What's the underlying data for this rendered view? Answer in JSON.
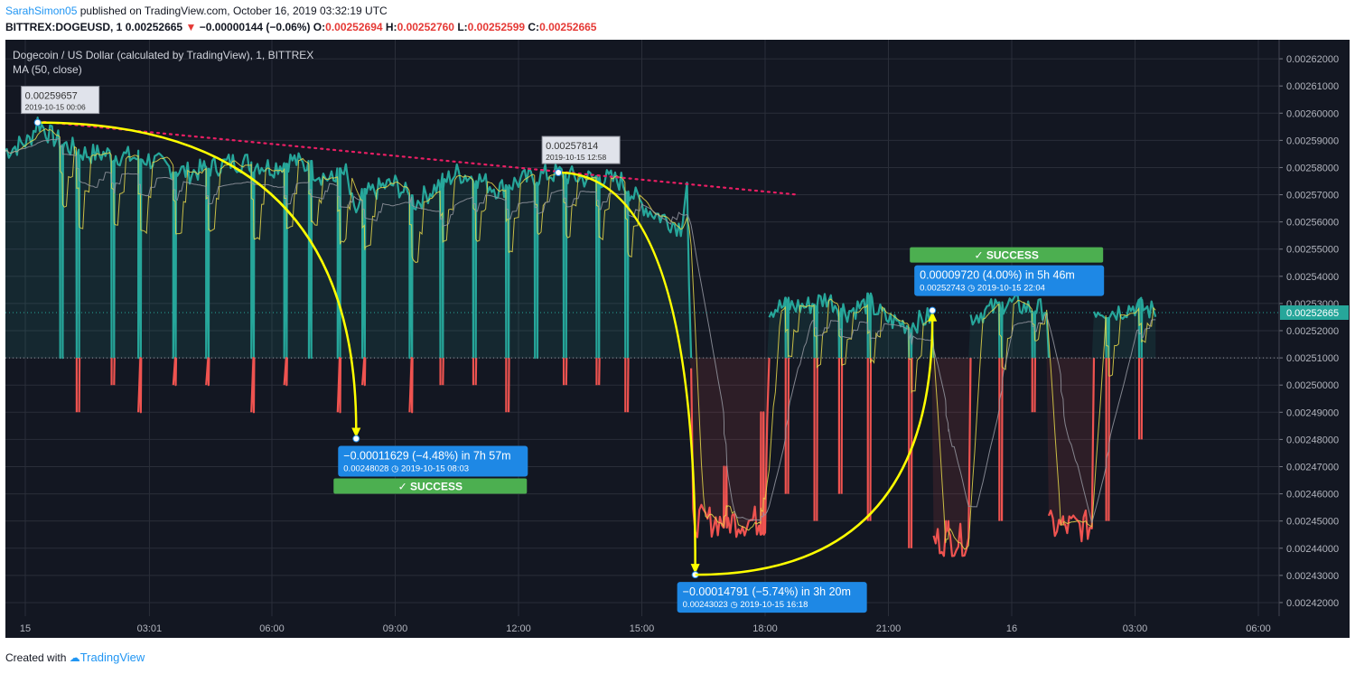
{
  "header": {
    "author": "SarahSimon05",
    "published_text": " published on TradingView.com, October 16, 2019 03:32:19 UTC",
    "symbol": "BITTREX:DOGEUSD, 1",
    "last_price": "0.00252665",
    "change_arrow": "▼",
    "change": "−0.00000144 (−0.06%)",
    "o_label": "O:",
    "o_value": "0.00252694",
    "h_label": "H:",
    "h_value": "0.00252760",
    "l_label": "L:",
    "l_value": "0.00252599",
    "c_label": "C:",
    "c_value": "0.00252665"
  },
  "footer": {
    "created_with": "Created with",
    "brand": "TradingView"
  },
  "colors": {
    "background": "#131722",
    "grid": "#2a2e39",
    "up": "#26a69a",
    "down": "#ef5350",
    "ma_fast": "#e6d84a",
    "ma_slow": "#9598a1",
    "annotation": "#ffff00",
    "trendline": "#e91e63",
    "label_blue": "#1e88e5",
    "success_green": "#4caf50"
  },
  "chart_data": {
    "type": "area",
    "title": "Dogecoin / US Dollar (calculated by TradingView), 1, BITTREX",
    "indicator": "MA (50, close)",
    "x_axis": {
      "unit": "time (UTC), 1-minute bars, 2019-10-15 00:00 to 2019-10-16 03:32",
      "ticks": [
        {
          "label": "15",
          "t": 0
        },
        {
          "label": "03:01",
          "t": 3.02
        },
        {
          "label": "06:00",
          "t": 6
        },
        {
          "label": "09:00",
          "t": 9
        },
        {
          "label": "12:00",
          "t": 12
        },
        {
          "label": "15:00",
          "t": 15
        },
        {
          "label": "18:00",
          "t": 18
        },
        {
          "label": "21:00",
          "t": 21
        },
        {
          "label": "16",
          "t": 24
        },
        {
          "label": "03:00",
          "t": 27
        },
        {
          "label": "06:00",
          "t": 30
        }
      ]
    },
    "y_axis": {
      "range": [
        0.002415,
        0.002627
      ],
      "ticks": [
        "0.00262000",
        "0.00261000",
        "0.00260000",
        "0.00259000",
        "0.00258000",
        "0.00257000",
        "0.00256000",
        "0.00255000",
        "0.00254000",
        "0.00253000",
        "0.00252000",
        "0.00251000",
        "0.00250000",
        "0.00249000",
        "0.00248000",
        "0.00247000",
        "0.00246000",
        "0.00245000",
        "0.00244000",
        "0.00243000",
        "0.00242000"
      ],
      "last_price_label": "0.00252665",
      "baseline": 0.00251
    },
    "series": [
      {
        "name": "DOGEUSD",
        "points": [
          [
            -0.5,
            0.002586
          ],
          [
            -0.2,
            0.002588
          ],
          [
            0.1,
            0.00259
          ],
          [
            0.3,
            0.002597
          ],
          [
            0.6,
            0.002592
          ],
          [
            1.0,
            0.002588
          ],
          [
            1.5,
            0.002585
          ],
          [
            2.0,
            0.002585
          ],
          [
            2.5,
            0.002584
          ],
          [
            3.0,
            0.002583
          ],
          [
            3.5,
            0.00258
          ],
          [
            4.0,
            0.002578
          ],
          [
            4.5,
            0.00258
          ],
          [
            5.0,
            0.002582
          ],
          [
            5.5,
            0.002582
          ],
          [
            6.0,
            0.00258
          ],
          [
            6.5,
            0.002583
          ],
          [
            7.0,
            0.002579
          ],
          [
            7.5,
            0.002575
          ],
          [
            7.8,
            0.002578
          ],
          [
            8.0,
            0.002563
          ],
          [
            8.3,
            0.00257
          ],
          [
            8.7,
            0.002573
          ],
          [
            9.0,
            0.002574
          ],
          [
            9.5,
            0.002567
          ],
          [
            10.0,
            0.002573
          ],
          [
            10.5,
            0.002578
          ],
          [
            11.0,
            0.002576
          ],
          [
            11.5,
            0.002572
          ],
          [
            12.0,
            0.002575
          ],
          [
            12.5,
            0.002577
          ],
          [
            12.97,
            0.002578
          ],
          [
            13.5,
            0.002576
          ],
          [
            14.0,
            0.002576
          ],
          [
            14.5,
            0.002575
          ],
          [
            14.9,
            0.002568
          ],
          [
            15.2,
            0.002564
          ],
          [
            15.6,
            0.002561
          ],
          [
            15.95,
            0.002558
          ],
          [
            16.1,
            0.002575
          ],
          [
            16.15,
            0.002535
          ],
          [
            16.25,
            0.00247
          ],
          [
            16.4,
            0.00246
          ],
          [
            16.7,
            0.00245
          ],
          [
            17.2,
            0.00245
          ],
          [
            17.6,
            0.002448
          ],
          [
            18.0,
            0.002449
          ],
          [
            18.1,
            0.002528
          ],
          [
            18.5,
            0.002529
          ],
          [
            19.0,
            0.002529
          ],
          [
            19.5,
            0.002532
          ],
          [
            20.0,
            0.002527
          ],
          [
            20.5,
            0.00253
          ],
          [
            21.0,
            0.002524
          ],
          [
            21.5,
            0.002522
          ],
          [
            22.0,
            0.002525
          ],
          [
            22.2,
            0.002526
          ],
          [
            22.4,
            0.002525
          ],
          [
            22.8,
            0.002526
          ],
          [
            23.0,
            0.002525
          ],
          [
            23.5,
            0.002528
          ],
          [
            24.0,
            0.00253
          ],
          [
            24.5,
            0.002528
          ],
          [
            25.0,
            0.002528
          ],
          [
            25.5,
            0.002527
          ],
          [
            26.0,
            0.002528
          ],
          [
            26.5,
            0.002527
          ],
          [
            27.0,
            0.002529
          ],
          [
            27.53,
            0.002527
          ]
        ]
      }
    ],
    "spikes": [
      [
        0.85,
        0.00251
      ],
      [
        1.25,
        0.00249
      ],
      [
        2.1,
        0.0025
      ],
      [
        2.75,
        0.00249
      ],
      [
        3.6,
        0.0025
      ],
      [
        4.4,
        0.0025
      ],
      [
        5.5,
        0.00249
      ],
      [
        6.3,
        0.0025
      ],
      [
        6.9,
        0.00251
      ],
      [
        7.6,
        0.00249
      ],
      [
        8.2,
        0.0025
      ],
      [
        9.35,
        0.00249
      ],
      [
        10.1,
        0.0025
      ],
      [
        10.9,
        0.0025
      ],
      [
        11.7,
        0.00249
      ],
      [
        12.4,
        0.00251
      ],
      [
        13.1,
        0.0025
      ],
      [
        13.9,
        0.0025
      ],
      [
        14.6,
        0.00249
      ],
      [
        17.0,
        0.00247
      ],
      [
        17.9,
        0.00249
      ],
      [
        18.5,
        0.00246
      ],
      [
        19.2,
        0.00245
      ],
      [
        19.8,
        0.00246
      ],
      [
        20.5,
        0.00245
      ],
      [
        21.5,
        0.00244
      ],
      [
        22.4,
        0.00245
      ],
      [
        23.7,
        0.00245
      ],
      [
        24.5,
        0.00249
      ],
      [
        25.2,
        0.00245
      ],
      [
        26.3,
        0.00245
      ],
      [
        27.1,
        0.00248
      ]
    ],
    "dropouts": [
      {
        "from": 16.25,
        "to": 18.05,
        "floor": 0.00245
      },
      {
        "from": 22.1,
        "to": 23.0,
        "floor": 0.002443
      },
      {
        "from": 24.9,
        "to": 26.0,
        "floor": 0.002448
      }
    ],
    "trendline": {
      "from": [
        0.3,
        0.002597
      ],
      "to": [
        18.8,
        0.00257
      ]
    },
    "annotations": [
      {
        "price_label": "0.00259657",
        "time_label": "2019-10-15 00:06",
        "t": 0.3,
        "price": 0.00259657
      },
      {
        "price_label": "0.00257814",
        "time_label": "2019-10-15 12:58",
        "t": 12.97,
        "price": 0.00257814
      }
    ],
    "measurements": [
      {
        "from": [
          0.3,
          0.00259657
        ],
        "to": [
          8.05,
          0.00248028
        ],
        "text": "−0.00011629 (−4.48%) in 7h 57m",
        "detail_price": "0.00248028",
        "detail_time": "2019-10-15  08:03",
        "status": "✓ SUCCESS",
        "status_position": "below"
      },
      {
        "from": [
          12.97,
          0.00257814
        ],
        "to": [
          16.3,
          0.00243023
        ],
        "text": "−0.00014791 (−5.74%) in 3h 20m",
        "detail_price": "0.00243023",
        "detail_time": "2019-10-15  16:18",
        "status": "",
        "status_position": "none"
      },
      {
        "from": [
          16.3,
          0.00243023
        ],
        "to": [
          22.07,
          0.00252743
        ],
        "text": "0.00009720 (4.00%) in 5h 46m",
        "detail_price": "0.00252743",
        "detail_time": "2019-10-15  22:04",
        "status": "✓ SUCCESS",
        "status_position": "above"
      }
    ]
  }
}
